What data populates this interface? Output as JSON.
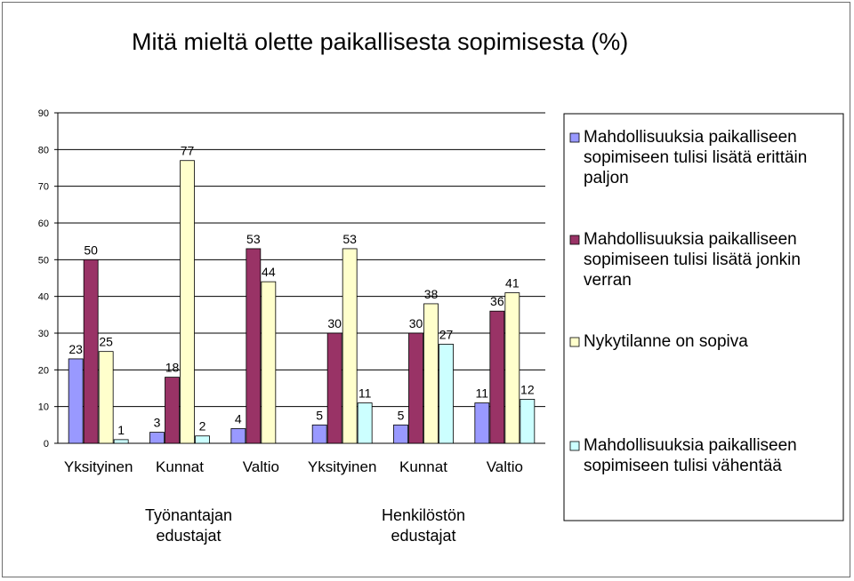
{
  "chart_data": {
    "type": "bar",
    "title": "Mitä mieltä olette paikallisesta sopimisesta (%)",
    "xlabel": "",
    "ylabel": "",
    "ylim": [
      0,
      90
    ],
    "yticks": [
      0,
      10,
      20,
      30,
      40,
      50,
      60,
      70,
      80,
      90
    ],
    "grid": true,
    "legend_position": "right",
    "categories": [
      "Yksityinen",
      "Kunnat",
      "Valtio",
      "Yksityinen",
      "Kunnat",
      "Valtio"
    ],
    "groups": [
      {
        "label_line1": "Työnantajan",
        "label_line2": "edustajat"
      },
      {
        "label_line1": "Henkilöstön",
        "label_line2": "edustajat"
      }
    ],
    "series": [
      {
        "name": "Mahdollisuuksia paikalliseen sopimiseen tulisi lisätä erittäin paljon",
        "legend_lines": [
          "Mahdollisuuksia paikalliseen",
          "sopimiseen tulisi lisätä erittäin",
          "paljon"
        ],
        "color": "#9999ff",
        "values": [
          23,
          3,
          4,
          5,
          5,
          11
        ]
      },
      {
        "name": "Mahdollisuuksia paikalliseen sopimiseen tulisi lisätä jonkin verran",
        "legend_lines": [
          "Mahdollisuuksia paikalliseen",
          "sopimiseen tulisi lisätä jonkin",
          "verran"
        ],
        "color": "#993366",
        "values": [
          50,
          18,
          53,
          30,
          30,
          36
        ]
      },
      {
        "name": "Nykytilanne on sopiva",
        "legend_lines": [
          "Nykytilanne on sopiva"
        ],
        "color": "#ffffcc",
        "values": [
          25,
          77,
          44,
          53,
          38,
          41
        ]
      },
      {
        "name": "Mahdollisuuksia paikalliseen sopimiseen tulisi vähentää",
        "legend_lines": [
          "Mahdollisuuksia paikalliseen",
          "sopimiseen tulisi vähentää"
        ],
        "color": "#ccffff",
        "values": [
          1,
          2,
          null,
          11,
          27,
          12
        ]
      }
    ]
  }
}
